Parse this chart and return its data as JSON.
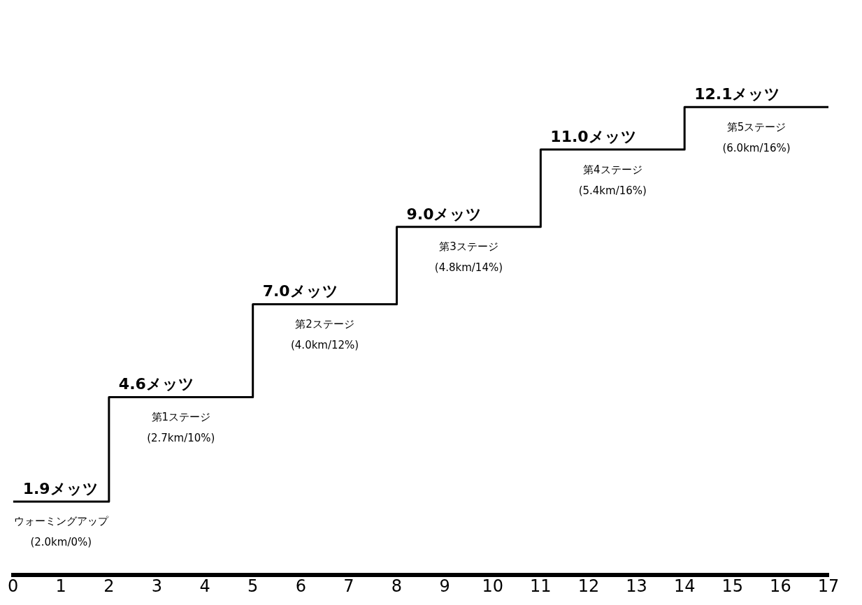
{
  "chart_data": {
    "type": "step",
    "x": [
      0,
      2,
      5,
      8,
      11,
      14,
      17
    ],
    "series": [
      {
        "color": "#000000",
        "values": [
          1.9,
          4.6,
          7.0,
          9.0,
          11.0,
          12.1,
          12.1
        ],
        "value_labels": [
          "1.9メッツ",
          "4.6メッツ",
          "7.0メッツ",
          "9.0メッツ",
          "11.0メッツ",
          "12.1メッツ",
          null
        ]
      }
    ],
    "xlim": [
      0,
      17
    ],
    "xticks": [
      0,
      1,
      2,
      3,
      4,
      5,
      6,
      7,
      8,
      9,
      10,
      11,
      12,
      13,
      14,
      15,
      16,
      17
    ],
    "tick_labels": "x",
    "grid": false,
    "legend": false,
    "marker": "none",
    "line_style": "solid",
    "annotations": [
      {
        "text": "ウォーミングアップ\n(2.0km/0%)",
        "x": 1,
        "y": 1.9
      },
      {
        "text": "第1ステージ\n(2.7km/10%)",
        "x": 3.5,
        "y": 4.6
      },
      {
        "text": "第2ステージ\n(4.0km/12%)",
        "x": 6.5,
        "y": 7.0
      },
      {
        "text": "第3ステージ\n(4.8km/14%)",
        "x": 9.5,
        "y": 9.0
      },
      {
        "text": "第4ステージ\n(5.4km/16%)",
        "x": 12.5,
        "y": 11.0
      },
      {
        "text": "第5ステージ\n(6.0km/16%)",
        "x": 15.5,
        "y": 12.1
      }
    ]
  }
}
